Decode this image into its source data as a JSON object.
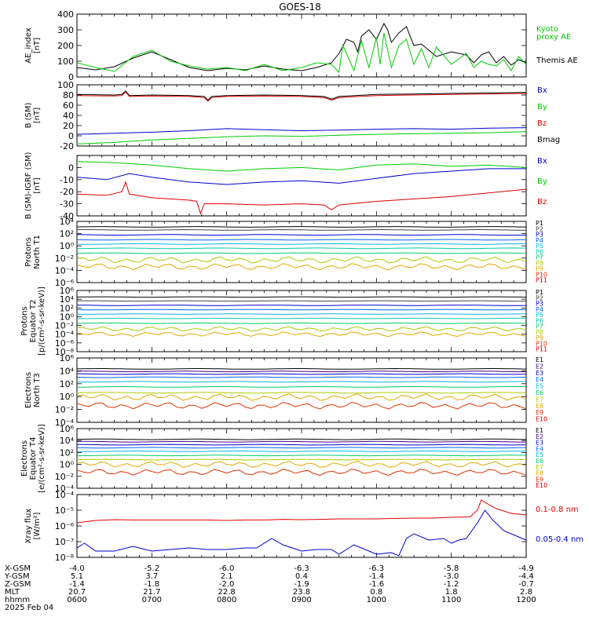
{
  "title": "GOES-18",
  "colors": {
    "black": "#000000",
    "red": "#dd0000",
    "green": "#00cc00",
    "blue": "#0000cc",
    "dark_red": "#aa0000",
    "p_channels": [
      "#000000",
      "#444444",
      "#0000cc",
      "#0066ff",
      "#00bbdd",
      "#00ccaa",
      "#00cc66",
      "#aacc00",
      "#ddaa00",
      "#dd3300",
      "#cc0000"
    ],
    "e_channels": [
      "#000000",
      "#440088",
      "#0000cc",
      "#0066ff",
      "#00bbdd",
      "#00cc66",
      "#aacc00",
      "#ddaa00",
      "#dd3300",
      "#cc0000"
    ]
  },
  "panel_labels": {
    "ae": [
      "AE_index",
      "[nT]"
    ],
    "b": [
      "B (SM)",
      "[nT]"
    ],
    "db": [
      "B (SM)-IGRF (SM)",
      "[nT]"
    ],
    "pn": [
      "Protons",
      "North T1"
    ],
    "pe": [
      "Protons",
      "Equator T2",
      "[p/(cm²-s-sr-keV)]"
    ],
    "en": [
      "Electrons",
      "North T3"
    ],
    "ee": [
      "Electrons",
      "Equator T4",
      "[e/(cm²-s-sr-keV)]"
    ],
    "xr": [
      "Xray flux",
      "[W/m²]"
    ]
  },
  "legends": {
    "ae": [
      {
        "text": "Kyoto",
        "color": "#00cc00"
      },
      {
        "text": "proxy AE",
        "color": "#00cc00"
      },
      {
        "text": "Themis AE",
        "color": "#000000"
      }
    ],
    "b": [
      {
        "text": "Bx",
        "color": "#0000cc"
      },
      {
        "text": "By",
        "color": "#00cc00"
      },
      {
        "text": "Bz",
        "color": "#dd0000"
      },
      {
        "text": "Bmag",
        "color": "#000000"
      }
    ],
    "db": [
      {
        "text": "Bx",
        "color": "#0000cc"
      },
      {
        "text": "By",
        "color": "#00cc00"
      },
      {
        "text": "Bz",
        "color": "#dd0000"
      }
    ],
    "p": [
      "P1",
      "P2",
      "P3",
      "P4",
      "P5",
      "P6",
      "P7",
      "P8",
      "P9",
      "P10",
      "P11"
    ],
    "e": [
      "E1",
      "E2",
      "E3",
      "E4",
      "E5",
      "E6",
      "E7",
      "E8",
      "E9",
      "E10"
    ],
    "xr": [
      {
        "text": "0.1-0.8 nm",
        "color": "#dd0000"
      },
      {
        "text": "0.05-0.4 nm",
        "color": "#0000cc"
      }
    ]
  },
  "ephemeris": {
    "row_labels": [
      "X-GSM",
      "Y-GSM",
      "Z-GSM",
      "MLT",
      "hhmm",
      "2025 Feb 04"
    ],
    "columns": [
      [
        "-4.0",
        "5.1",
        "-1.4",
        "20.7",
        "0600"
      ],
      [
        "-5.2",
        "3.7",
        "-1.8",
        "21.7",
        "0700"
      ],
      [
        "-6.0",
        "2.1",
        "-2.0",
        "22.8",
        "0800"
      ],
      [
        "-6.3",
        "0.4",
        "-1.9",
        "23.8",
        "0900"
      ],
      [
        "-6.3",
        "-1.4",
        "-1.6",
        "0.8",
        "1000"
      ],
      [
        "-5.8",
        "-3.0",
        "-1.2",
        "1.8",
        "1100"
      ],
      [
        "-4.9",
        "-4.4",
        "-0.7",
        "2.8",
        "1200"
      ]
    ]
  },
  "chart_data": [
    {
      "type": "line",
      "name": "ae",
      "xlim": [
        6,
        12
      ],
      "ylim": [
        0,
        400
      ],
      "yticks": [
        "0",
        "100",
        "200",
        "300",
        "400"
      ],
      "series": [
        {
          "name": "Themis AE",
          "color": "#000000",
          "x": [
            6.0,
            6.25,
            6.5,
            6.75,
            7.0,
            7.25,
            7.5,
            7.75,
            8.0,
            8.25,
            8.5,
            8.75,
            9.0,
            9.2,
            9.4,
            9.5,
            9.6,
            9.7,
            9.75,
            9.8,
            9.9,
            10.0,
            10.1,
            10.15,
            10.2,
            10.3,
            10.4,
            10.5,
            10.6,
            10.7,
            10.8,
            11.0,
            11.2,
            11.3,
            11.4,
            11.5,
            11.6,
            11.7,
            11.8,
            11.9,
            12.0
          ],
          "y": [
            60,
            45,
            65,
            120,
            160,
            110,
            60,
            40,
            55,
            45,
            70,
            50,
            40,
            60,
            90,
            150,
            240,
            220,
            160,
            260,
            300,
            240,
            340,
            300,
            220,
            280,
            320,
            200,
            210,
            170,
            130,
            160,
            140,
            90,
            140,
            160,
            90,
            130,
            75,
            110,
            90
          ]
        },
        {
          "name": "Kyoto proxy AE",
          "color": "#00cc00",
          "x": [
            6.0,
            6.25,
            6.5,
            6.75,
            7.0,
            7.25,
            7.5,
            7.75,
            8.0,
            8.25,
            8.5,
            8.75,
            9.0,
            9.2,
            9.4,
            9.5,
            9.55,
            9.6,
            9.7,
            9.8,
            9.9,
            10.0,
            10.05,
            10.1,
            10.2,
            10.3,
            10.4,
            10.5,
            10.6,
            10.7,
            10.8,
            11.0,
            11.2,
            11.3,
            11.4,
            11.5,
            11.6,
            11.7,
            11.8,
            11.9,
            12.0
          ],
          "y": [
            90,
            60,
            35,
            130,
            170,
            100,
            70,
            50,
            60,
            40,
            80,
            40,
            60,
            90,
            80,
            30,
            200,
            150,
            40,
            230,
            60,
            250,
            80,
            280,
            60,
            200,
            240,
            80,
            180,
            60,
            190,
            80,
            150,
            60,
            100,
            80,
            70,
            110,
            40,
            130,
            80
          ]
        }
      ]
    },
    {
      "type": "line",
      "name": "b",
      "xlim": [
        6,
        12
      ],
      "ylim": [
        -20,
        100
      ],
      "yticks": [
        "-20",
        "0",
        "20",
        "40",
        "60",
        "80",
        "100"
      ],
      "series": [
        {
          "name": "Bmag",
          "color": "#000000",
          "x": [
            6.0,
            6.5,
            6.6,
            6.65,
            6.7,
            7.0,
            7.5,
            7.7,
            7.75,
            7.8,
            8.0,
            8.5,
            9.0,
            9.3,
            9.4,
            9.5,
            10.0,
            10.5,
            11.0,
            11.5,
            12.0
          ],
          "y": [
            81,
            80,
            81,
            88,
            79,
            80,
            79,
            77,
            70,
            77,
            79,
            80,
            79,
            77,
            72,
            77,
            81,
            82,
            83,
            84,
            85
          ]
        },
        {
          "name": "Bz",
          "color": "#dd0000",
          "x": [
            6.0,
            6.5,
            6.6,
            6.65,
            6.7,
            7.0,
            7.5,
            7.7,
            7.75,
            7.8,
            8.0,
            8.5,
            9.0,
            9.3,
            9.4,
            9.5,
            10.0,
            10.5,
            11.0,
            11.5,
            12.0
          ],
          "y": [
            79,
            78,
            79,
            86,
            77,
            78,
            77,
            75,
            68,
            75,
            77,
            78,
            77,
            75,
            70,
            75,
            79,
            80,
            81,
            82,
            83
          ]
        },
        {
          "name": "Bx",
          "color": "#0000cc",
          "x": [
            6.0,
            6.5,
            7.0,
            7.5,
            8.0,
            8.5,
            9.0,
            9.5,
            10.0,
            10.5,
            11.0,
            11.5,
            12.0
          ],
          "y": [
            3,
            5,
            7,
            10,
            14,
            12,
            10,
            11,
            13,
            14,
            13,
            15,
            16
          ]
        },
        {
          "name": "By",
          "color": "#00cc00",
          "x": [
            6.0,
            6.5,
            7.0,
            7.5,
            8.0,
            8.5,
            9.0,
            9.5,
            10.0,
            10.5,
            11.0,
            11.5,
            12.0
          ],
          "y": [
            -16,
            -13,
            -8,
            -5,
            -2,
            0,
            -1,
            1,
            3,
            4,
            5,
            6,
            8
          ]
        }
      ]
    },
    {
      "type": "line",
      "name": "db",
      "xlim": [
        6,
        12
      ],
      "ylim": [
        -40,
        10
      ],
      "yticks": [
        "-40",
        "-30",
        "-20",
        "-10",
        "0"
      ],
      "series": [
        {
          "name": "By",
          "color": "#00cc00",
          "x": [
            6.0,
            6.5,
            7.0,
            7.5,
            8.0,
            8.5,
            9.0,
            9.5,
            10.0,
            10.5,
            11.0,
            11.5,
            12.0
          ],
          "y": [
            5,
            4,
            2,
            -1,
            -3,
            -1,
            0,
            -2,
            2,
            3,
            1,
            2,
            0
          ]
        },
        {
          "name": "Bx",
          "color": "#0000cc",
          "x": [
            6.0,
            6.4,
            6.7,
            7.0,
            7.5,
            8.0,
            8.5,
            9.0,
            9.5,
            10.0,
            10.5,
            11.0,
            11.5,
            12.0
          ],
          "y": [
            -8,
            -10,
            -5,
            -8,
            -12,
            -14,
            -12,
            -11,
            -13,
            -9,
            -5,
            -3,
            -1,
            -1
          ]
        },
        {
          "name": "Bz",
          "color": "#dd0000",
          "x": [
            6.0,
            6.4,
            6.6,
            6.65,
            6.7,
            7.0,
            7.5,
            7.6,
            7.65,
            7.7,
            8.0,
            8.5,
            9.0,
            9.3,
            9.4,
            9.5,
            10.0,
            10.5,
            11.0,
            11.5,
            12.0
          ],
          "y": [
            -22,
            -23,
            -20,
            -12,
            -22,
            -25,
            -27,
            -28,
            -38,
            -30,
            -30,
            -31,
            -30,
            -31,
            -35,
            -31,
            -28,
            -26,
            -24,
            -21,
            -18
          ]
        }
      ]
    },
    {
      "type": "line",
      "name": "pn",
      "scale": "log",
      "ylim": [
        -6,
        4
      ],
      "yticks": [
        "10⁻⁶",
        "10⁻⁴",
        "10⁻²",
        "10⁰",
        "10²",
        "10⁴"
      ],
      "channel_levels_log10": [
        3.1,
        2.6,
        1.8,
        1.0,
        0.3,
        -0.4,
        -1.2,
        -2.3,
        -3.4,
        -4.4,
        -5.2
      ],
      "visible_channels": 9
    },
    {
      "type": "line",
      "name": "pe",
      "scale": "log",
      "ylim": [
        -8,
        6
      ],
      "yticks": [
        "10⁻⁸",
        "10⁻⁶",
        "10⁻⁴",
        "10⁻²",
        "10⁰",
        "10²",
        "10⁴",
        "10⁶"
      ],
      "channel_levels_log10": [
        4.5,
        3.6,
        2.6,
        1.6,
        0.6,
        -0.4,
        -1.5,
        -2.8,
        -4.0,
        -5.4,
        -6.8
      ],
      "visible_channels": 9
    },
    {
      "type": "line",
      "name": "en",
      "scale": "log",
      "ylim": [
        -4,
        6
      ],
      "yticks": [
        "10⁻⁴",
        "10⁻²",
        "10⁰",
        "10²",
        "10⁴",
        "10⁶"
      ],
      "channel_levels_log10": [
        4.3,
        3.9,
        3.5,
        3.0,
        2.3,
        1.5,
        0.6,
        -0.1,
        -1.4,
        -2.5
      ],
      "visible_channels": 9
    },
    {
      "type": "line",
      "name": "ee",
      "scale": "log",
      "ylim": [
        -4,
        6
      ],
      "yticks": [
        "10⁻⁴",
        "10⁻²",
        "10⁰",
        "10²",
        "10⁴",
        "10⁶"
      ],
      "channel_levels_log10": [
        4.2,
        3.8,
        3.3,
        2.8,
        2.2,
        1.5,
        0.8,
        0.0,
        -1.3,
        -2.4
      ],
      "visible_channels": 9
    },
    {
      "type": "line",
      "name": "xr",
      "scale": "log",
      "ylim": [
        -8,
        -4
      ],
      "yticks": [
        "10⁻⁸",
        "10⁻⁷",
        "10⁻⁶",
        "10⁻⁵",
        "10⁻⁴"
      ],
      "series": [
        {
          "name": "0.1-0.8 nm",
          "color": "#dd0000",
          "x": [
            6.0,
            6.25,
            6.5,
            6.75,
            7.0,
            7.25,
            7.5,
            7.75,
            8.0,
            8.25,
            8.5,
            8.75,
            9.0,
            9.25,
            9.5,
            9.75,
            10.0,
            10.25,
            10.5,
            10.75,
            11.0,
            11.25,
            11.35,
            11.4,
            11.45,
            11.6,
            11.8,
            12.0
          ],
          "y": [
            -5.8,
            -5.65,
            -5.6,
            -5.62,
            -5.62,
            -5.62,
            -5.62,
            -5.62,
            -5.65,
            -5.62,
            -5.62,
            -5.58,
            -5.6,
            -5.58,
            -5.55,
            -5.55,
            -5.55,
            -5.52,
            -5.5,
            -5.5,
            -5.45,
            -5.42,
            -5.0,
            -4.35,
            -4.5,
            -4.9,
            -5.2,
            -5.3
          ]
        },
        {
          "name": "0.05-0.4 nm",
          "color": "#0000cc",
          "x": [
            6.0,
            6.1,
            6.25,
            6.5,
            6.75,
            7.0,
            7.25,
            7.5,
            7.75,
            8.0,
            8.25,
            8.4,
            8.6,
            8.75,
            9.0,
            9.2,
            9.4,
            9.5,
            9.7,
            9.9,
            10.0,
            10.2,
            10.3,
            10.4,
            10.5,
            10.7,
            10.9,
            11.0,
            11.1,
            11.2,
            11.35,
            11.45,
            11.55,
            11.7,
            11.85,
            12.0
          ],
          "y": [
            -7.4,
            -7.1,
            -7.6,
            -7.6,
            -7.3,
            -7.6,
            -7.5,
            -7.4,
            -7.5,
            -7.5,
            -7.4,
            -7.4,
            -6.8,
            -7.2,
            -7.6,
            -7.5,
            -7.5,
            -7.8,
            -7.2,
            -7.6,
            -7.8,
            -7.7,
            -7.9,
            -6.8,
            -6.5,
            -6.9,
            -6.8,
            -7.1,
            -6.9,
            -6.8,
            -5.8,
            -5.0,
            -5.6,
            -6.3,
            -6.6,
            -6.9
          ]
        }
      ]
    }
  ]
}
